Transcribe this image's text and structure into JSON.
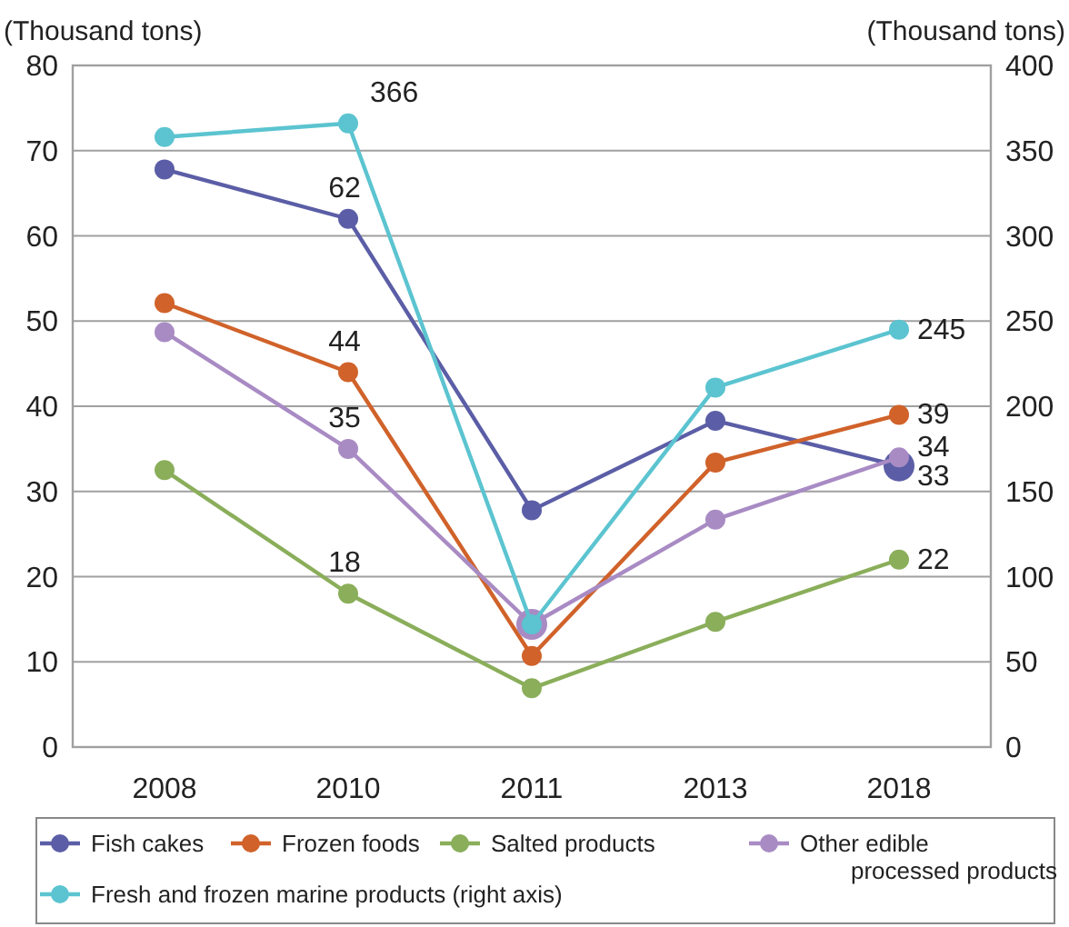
{
  "chart_data": {
    "type": "line",
    "ylabel": "(Thousand tons)",
    "y2label": "(Thousand tons)",
    "categories": [
      "2008",
      "2010",
      "2011",
      "2013",
      "2018"
    ],
    "ylim": [
      0,
      80
    ],
    "yticks": [
      0,
      10,
      20,
      30,
      40,
      50,
      60,
      70,
      80
    ],
    "y2lim": [
      0,
      400
    ],
    "y2ticks": [
      0,
      50,
      100,
      150,
      200,
      250,
      300,
      350,
      400
    ],
    "grid": "y",
    "legend": "bottom",
    "marker": "circle",
    "line_style": "solid",
    "series": [
      {
        "name": "Fish cakes",
        "color": "#5b5ea6",
        "values": [
          67.8,
          62,
          27.8,
          38.3,
          33
        ],
        "value_labels": [
          null,
          "62",
          null,
          null,
          "33"
        ]
      },
      {
        "name": "Frozen foods",
        "color": "#d0622a",
        "values": [
          52.1,
          44,
          10.7,
          33.4,
          39
        ],
        "value_labels": [
          null,
          "44",
          null,
          null,
          "39"
        ]
      },
      {
        "name": "Salted products",
        "color": "#8aae5a",
        "values": [
          32.5,
          18,
          6.9,
          14.7,
          22
        ],
        "value_labels": [
          null,
          "18",
          null,
          null,
          "22"
        ]
      },
      {
        "name": "Other edible processed products",
        "color": "#a98bc4",
        "values": [
          48.7,
          35,
          14.4,
          26.7,
          34
        ],
        "value_labels": [
          null,
          "35",
          null,
          null,
          "34"
        ]
      },
      {
        "name": "Fresh and frozen marine products (right axis)",
        "color": "#5bc4d0",
        "axis": "y2",
        "values": [
          358,
          366,
          72,
          211,
          245
        ],
        "value_labels": [
          null,
          "366",
          null,
          null,
          "245"
        ]
      }
    ]
  }
}
